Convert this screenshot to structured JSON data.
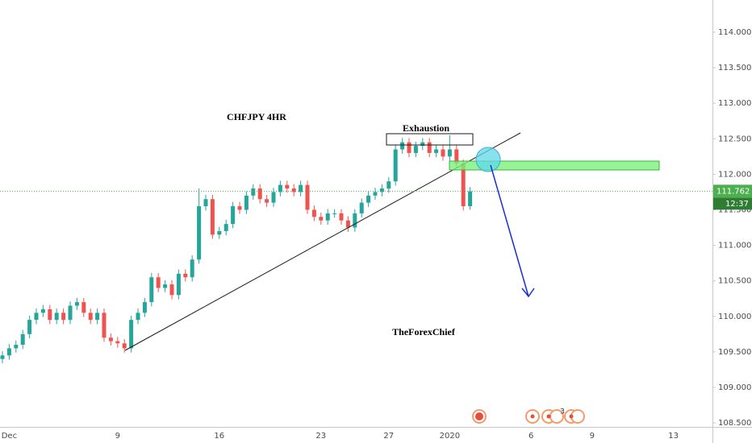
{
  "chart_data": {
    "type": "candlestick",
    "title": "CHFJPY 4HR",
    "annotations": [
      "Exhaustion",
      "TheForexChief",
      "3"
    ],
    "categories": [
      null,
      "Dec",
      null,
      null,
      null,
      null,
      null,
      null,
      null,
      null,
      null,
      null,
      null,
      null,
      null,
      null,
      null,
      "9",
      null,
      null,
      null,
      null,
      null,
      null,
      null,
      null,
      null,
      null,
      null,
      null,
      null,
      null,
      "16",
      null,
      null,
      null,
      null,
      null,
      null,
      null,
      null,
      null,
      null,
      null,
      null,
      null,
      null,
      "23",
      null,
      null,
      null,
      null,
      null,
      null,
      null,
      null,
      null,
      "27",
      null,
      null,
      null,
      null,
      null,
      null,
      null,
      null,
      "2020",
      null,
      null,
      null,
      null,
      null,
      null,
      null,
      null,
      null,
      null,
      null,
      "6",
      null,
      null,
      null,
      null,
      null,
      null,
      null,
      null,
      "9",
      null,
      null,
      null,
      null,
      null,
      null,
      null,
      null,
      null,
      null,
      null,
      "13",
      null,
      null,
      null,
      null,
      null
    ],
    "open": [
      109.4,
      109.45,
      109.55,
      109.6,
      109.75,
      109.95,
      110.05,
      110.1,
      109.95,
      110.05,
      109.95,
      110.15,
      110.2,
      110.05,
      109.95,
      110.05,
      109.7,
      109.65,
      109.62,
      109.55,
      109.95,
      110.05,
      110.2,
      110.55,
      110.4,
      110.45,
      110.3,
      110.6,
      110.55,
      110.8,
      111.55,
      111.65,
      111.15,
      111.2,
      111.3,
      111.55,
      111.5,
      111.7,
      111.8,
      111.65,
      111.6,
      111.75,
      111.85,
      111.8,
      111.75,
      111.85,
      111.5,
      111.4,
      111.35,
      111.45,
      111.45,
      111.35,
      111.25,
      111.45,
      111.6,
      111.7,
      111.75,
      111.8,
      111.9,
      112.35,
      112.45,
      112.3,
      112.4,
      112.45,
      112.3,
      112.35,
      112.25,
      112.35,
      112.15,
      111.55,
      null,
      null,
      null,
      null,
      null,
      null,
      null,
      null,
      null,
      null,
      null,
      null,
      null,
      null,
      null,
      null,
      null,
      null,
      null,
      null,
      null,
      null,
      null,
      null,
      null,
      null,
      null,
      null,
      null,
      null,
      null,
      null,
      null,
      null,
      null
    ],
    "high": [
      109.51,
      109.61,
      109.66,
      109.81,
      110.01,
      110.11,
      110.16,
      110.16,
      110.11,
      110.11,
      110.21,
      110.26,
      110.26,
      110.11,
      110.11,
      110.11,
      109.76,
      109.71,
      109.68,
      110.01,
      110.11,
      110.26,
      110.61,
      110.61,
      110.51,
      110.51,
      110.66,
      110.66,
      110.86,
      111.8,
      111.71,
      111.71,
      111.26,
      111.36,
      111.61,
      111.61,
      111.76,
      111.86,
      111.86,
      111.71,
      111.81,
      111.91,
      111.91,
      111.86,
      111.91,
      111.91,
      111.56,
      111.46,
      111.51,
      111.51,
      111.51,
      111.41,
      111.51,
      111.66,
      111.76,
      111.81,
      111.86,
      111.96,
      112.41,
      112.51,
      112.51,
      112.46,
      112.51,
      112.51,
      112.41,
      112.41,
      112.55,
      112.41,
      112.21,
      111.82,
      null,
      null,
      null,
      null,
      null,
      null,
      null,
      null,
      null,
      null,
      null,
      null,
      null,
      null,
      null,
      null,
      null,
      null,
      null,
      null,
      null,
      null,
      null,
      null,
      null,
      null,
      null,
      null,
      null,
      null,
      null,
      null,
      null,
      null,
      null
    ],
    "low": [
      109.34,
      109.39,
      109.49,
      109.54,
      109.69,
      109.89,
      109.99,
      109.89,
      109.89,
      109.89,
      109.89,
      110.09,
      109.99,
      109.89,
      109.89,
      109.64,
      109.59,
      109.56,
      109.49,
      109.49,
      109.89,
      109.99,
      110.14,
      110.34,
      110.34,
      110.24,
      110.24,
      110.49,
      110.49,
      110.74,
      111.49,
      111.09,
      111.09,
      111.14,
      111.24,
      111.44,
      111.44,
      111.64,
      111.59,
      111.54,
      111.54,
      111.69,
      111.74,
      111.69,
      111.69,
      111.44,
      111.34,
      111.29,
      111.29,
      111.39,
      111.29,
      111.19,
      111.19,
      111.39,
      111.54,
      111.64,
      111.69,
      111.74,
      111.84,
      112.29,
      112.24,
      112.24,
      112.34,
      112.24,
      112.24,
      112.19,
      112.19,
      112.09,
      111.49,
      111.5,
      null,
      null,
      null,
      null,
      null,
      null,
      null,
      null,
      null,
      null,
      null,
      null,
      null,
      null,
      null,
      null,
      null,
      null,
      null,
      null,
      null,
      null,
      null,
      null,
      null,
      null,
      null,
      null,
      null,
      null,
      null,
      null,
      null,
      null,
      null
    ],
    "close": [
      109.45,
      109.55,
      109.6,
      109.75,
      109.95,
      110.05,
      110.1,
      109.95,
      110.05,
      109.95,
      110.15,
      110.2,
      110.05,
      109.95,
      110.05,
      109.7,
      109.65,
      109.62,
      109.55,
      109.95,
      110.05,
      110.2,
      110.55,
      110.4,
      110.45,
      110.3,
      110.6,
      110.55,
      110.8,
      111.55,
      111.65,
      111.15,
      111.2,
      111.3,
      111.55,
      111.5,
      111.7,
      111.8,
      111.65,
      111.6,
      111.75,
      111.85,
      111.8,
      111.75,
      111.85,
      111.5,
      111.4,
      111.35,
      111.45,
      111.45,
      111.35,
      111.25,
      111.45,
      111.6,
      111.7,
      111.75,
      111.8,
      111.9,
      112.35,
      112.45,
      112.3,
      112.4,
      112.45,
      112.3,
      112.35,
      112.25,
      112.35,
      112.15,
      111.55,
      111.76,
      null,
      null,
      null,
      null,
      null,
      null,
      null,
      null,
      null,
      null,
      null,
      null,
      null,
      null,
      null,
      null,
      null,
      null,
      null,
      null,
      null,
      null,
      null,
      null,
      null,
      null,
      null,
      null,
      null,
      null,
      null,
      null,
      null,
      null,
      null
    ],
    "up_color": "#26a69a",
    "down_color": "#ef5350",
    "current_price": 111.762,
    "countdown": "12:37",
    "price_line_color": "#4caf50",
    "ylim": [
      108.444,
      114.453
    ],
    "yticks": [
      {
        "value": 108.5,
        "label": "108.500"
      },
      {
        "value": 109,
        "label": "109.000"
      },
      {
        "value": 109.5,
        "label": "109.500"
      },
      {
        "value": 110,
        "label": "110.000"
      },
      {
        "value": 110.5,
        "label": "110.500"
      },
      {
        "value": 111,
        "label": "111.000"
      },
      {
        "value": 111.5,
        "label": "111.500"
      },
      {
        "value": 112,
        "label": "112.000"
      },
      {
        "value": 112.5,
        "label": "112.500"
      },
      {
        "value": 113,
        "label": "113.000"
      },
      {
        "value": 113.5,
        "label": "113.500"
      },
      {
        "value": 114,
        "label": "114.000"
      }
    ]
  }
}
